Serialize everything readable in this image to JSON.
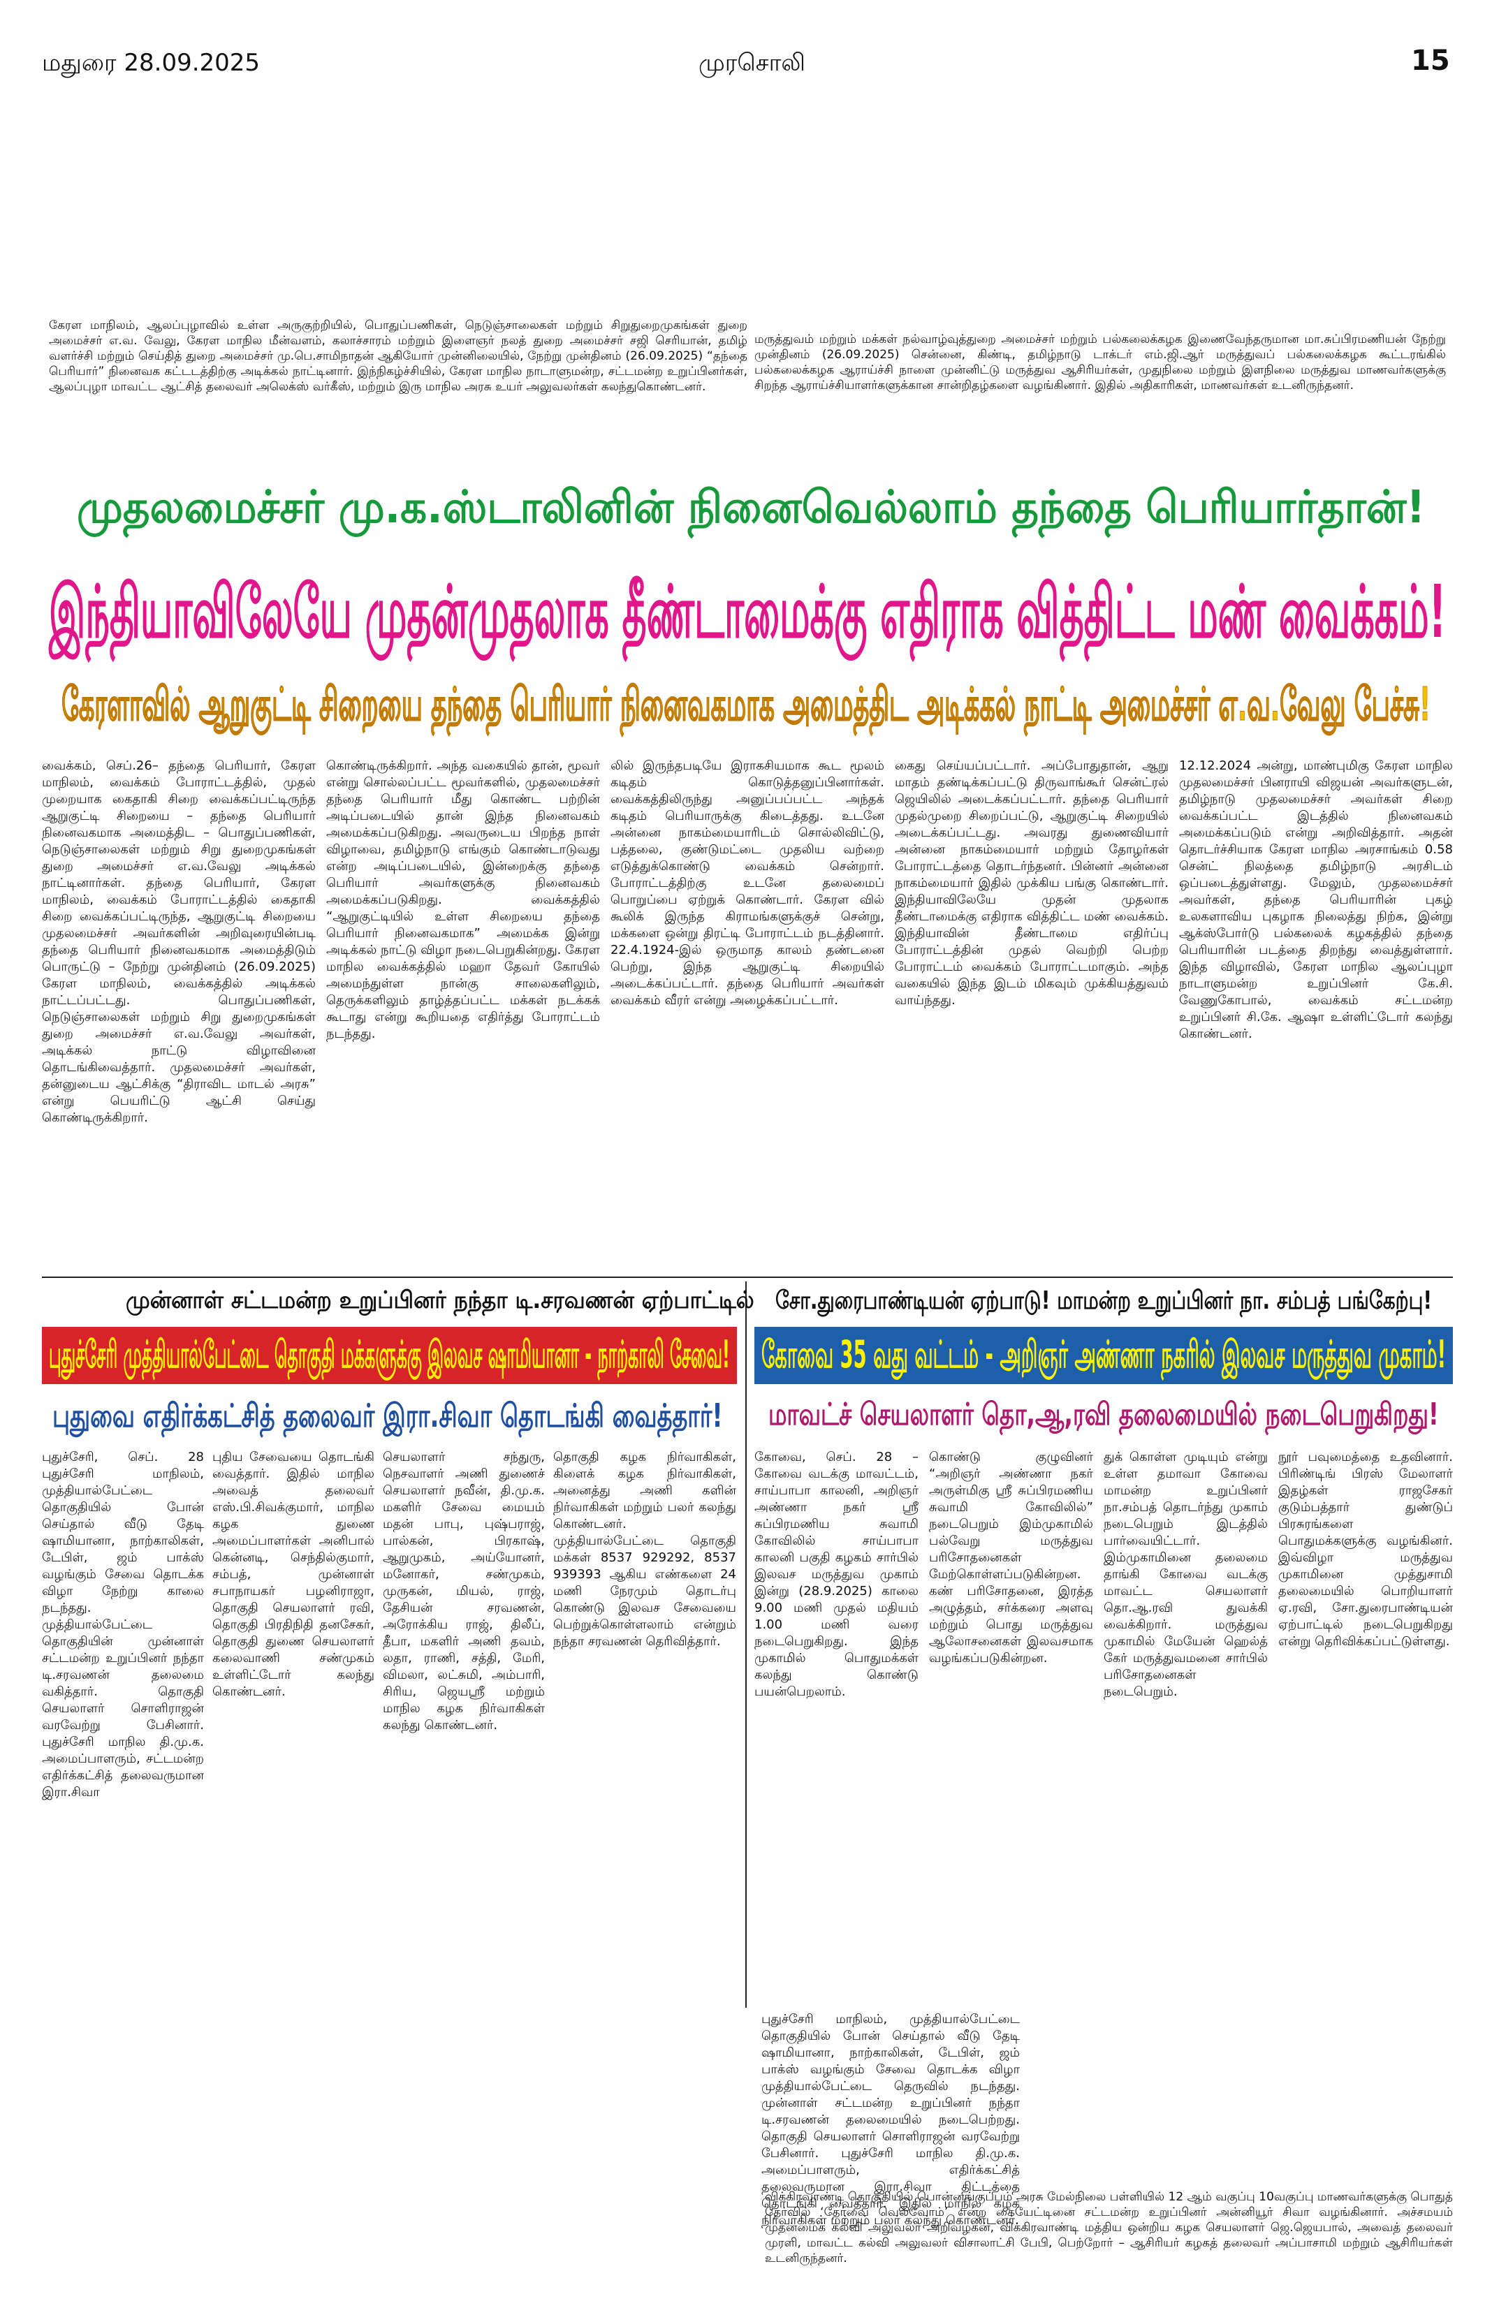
{
  "header": {
    "place_date": "மதுரை  28.09.2025",
    "paper": "முரசொலி",
    "page": "15"
  },
  "top_captions": [
    "கேரள மாநிலம், ஆலப்புழாவில் உள்ள அருகுற்றியில், பொதுப்பணிகள், நெடுஞ்சாலைகள் மற்றும் சிறுதுறைமுகங்கள் துறை அமைச்சர் எ.வ. வேலு, கேரள மாநில மீன்வளம், கலாச்சாரம் மற்றும் இளைஞர் நலத் துறை அமைச்சர் சஜி செரியான், தமிழ் வளர்ச்சி மற்றும் செய்தித் துறை அமைச்சர் மு.பெ.சாமிநாதன் ஆகியோர் முன்னிலையில், நேற்று முன்தினம் (26.09.2025) “தந்தை பெரியார்” நினைவக கட்டடத்திற்கு அடிக்கல் நாட்டினார். இந்நிகழ்ச்சியில், கேரள மாநில நாடாளுமன்ற, சட்டமன்ற உறுப்பினர்கள், ஆலப்புழா மாவட்ட ஆட்சித் தலைவர் அலெக்ஸ் வர்கீஸ், மற்றும் இரு மாநில அரசு உயர் அலுவலர்கள் கலந்துகொண்டனர்.",
    "மருத்துவம் மற்றும் மக்கள் நல்வாழ்வுத்துறை அமைச்சர் மற்றும் பல்கலைக்கழக இணைவேந்தருமான மா.சுப்பிரமணியன் நேற்று முன்தினம் (26.09.2025) சென்னை, கிண்டி, தமிழ்நாடு டாக்டர் எம்.ஜி.ஆர் மருத்துவப் பல்கலைக்கழக கூட்டரங்கில் பல்கலைக்கழக ஆராய்ச்சி நாளை முன்னிட்டு மருத்துவ ஆசிரியர்கள், முதுநிலை மற்றும் இளநிலை மருத்துவ மாணவர்களுக்கு சிறந்த ஆராய்ச்சியாளர்களுக்கான சான்றிதழ்களை வழங்கினார். இதில் அதிகாரிகள், மாணவர்கள் உடனிருந்தனர்."
  ],
  "story1": {
    "kicker": "முதலமைச்சர் மு.க.ஸ்டாலினின் நினைவெல்லாம் தந்தை பெரியார்தான்!",
    "headline": "இந்தியாவிலேயே முதன்முதலாக தீண்டாமைக்கு எதிராக வித்திட்ட மண் வைக்கம்!",
    "subhead": "கேரளாவில் ஆறுகுட்டி சிறையை தந்தை பெரியார் நினைவகமாக அமைத்திட அடிக்கல் நாட்டி அமைச்சர் எ.வ.வேலு பேச்சு!",
    "columns": [
      "வைக்கம், செப்.26– தந்தை பெரியார், கேரள மாநிலம், வைக்கம் போராட்டத்தில், முதல் முறையாக கைதாகி சிறை வைக்கப்பட்டிருந்த ஆறுகுட்டி சிறையை – தந்தை பெரியார் நினைவகமாக அமைத்திட – பொதுப்பணிகள், நெடுஞ்சாலைகள் மற்றும் சிறு துறைமுகங்கள் துறை அமைச்சர் எ.வ.வேலு அடிக்கல் நாட்டினார்கள். தந்தை பெரியார், கேரள மாநிலம், வைக்கம் போராட்டத்தில் கைதாகி சிறை வைக்கப்பட்டிருந்த, ஆறுகுட்டி சிறையை முதலமைச்சர் அவர்களின் அறிவுரையின்படி தந்தை பெரியார் நினைவகமாக அமைத்திடும் பொருட்டு – நேற்று முன்தினம் (26.09.2025) கேரள மாநிலம், வைக்கத்தில் அடிக்கல் நாட்டப்பட்டது. பொதுப்பணிகள், நெடுஞ்சாலைகள் மற்றும் சிறு துறைமுகங்கள் துறை அமைச்சர் எ.வ.வேலு அவர்கள், அடிக்கல் நாட்டு விழாவினை தொடங்கிவைத்தார். முதலமைச்சர் அவர்கள், தன்னுடைய ஆட்சிக்கு “திராவிட மாடல் அரசு” என்று பெயரிட்டு ஆட்சி செய்து கொண்டிருக்கிறார்.",
      "கொண்டிருக்கிறார். அந்த வகையில் தான், மூவர் என்று சொல்லப்பட்ட மூவர்களில், முதலமைச்சர் தந்தை பெரியார் மீது கொண்ட பற்றின் அடிப்படையில் தான் இந்த நினைவகம் அமைக்கப்படுகிறது. அவருடைய பிறந்த நாள் விழாவை, தமிழ்நாடு எங்கும் கொண்டாடுவது என்ற அடிப்படையில், இன்றைக்கு தந்தை பெரியார் அவர்களுக்கு நினைவகம் அமைக்கப்படுகிறது. வைக்கத்தில் “ஆறுகுட்டியில் உள்ள சிறையை தந்தை பெரியார் நினைவகமாக” அமைக்க இன்று அடிக்கல் நாட்டு விழா நடைபெறுகின்றது. கேரள மாநில வைக்கத்தில் மஹா தேவர் கோயில் அமைந்துள்ள நான்கு சாலைகளிலும், தெருக்களிலும் தாழ்த்தப்பட்ட மக்கள் நடக்கக் கூடாது என்று கூறியதை எதிர்த்து போராட்டம் நடந்தது.",
      "லில் இருந்தபடியே இராகசியமாக கூட மூலம் கடிதம் கொடுத்தனுப்பினார்கள். வைக்கத்திலிருந்து அனுப்பப்பட்ட அந்தக் கடிதம் பெரியாருக்கு கிடைத்தது. உடனே அன்னை நாகம்மையாரிடம் சொல்லிவிட்டு, பத்தலை, குண்டுமட்டை முதலிய வற்றை எடுத்துக்கொண்டு வைக்கம் சென்றார். போராட்டத்திற்கு உடனே தலைமைப் பொறுப்பை ஏற்றுக் கொண்டார். கேரள வில் கூலிக் இருந்த கிராமங்களுக்குச் சென்று, மக்களை ஒன்று திரட்டி போராட்டம் நடத்தினார். 22.4.1924-இல் ஒருமாத காலம் தண்டனை பெற்று, இந்த ஆறுகுட்டி சிறையில் அடைக்கப்பட்டார். தந்தை பெரியார் அவர்கள் வைக்கம் வீரர் என்று அழைக்கப்பட்டார்.",
      "கைது செய்யப்பட்டார். அப்போதுதான், ஆறு மாதம் தண்டிக்கப்பட்டு திருவாங்கூர் சென்ட்ரல் ஜெயிலில் அடைக்கப்பட்டார். தந்தை பெரியார் முதல்முறை சிறைப்பட்டு, ஆறுகுட்டி சிறையில் அடைக்கப்பட்டது. அவரது துணைவியார் அன்னை நாகம்மையார் மற்றும் தோழர்கள் போராட்டத்தை தொடர்ந்தனர். பின்னர் அன்னை நாகம்மையார் இதில் முக்கிய பங்கு கொண்டார். இந்தியாவிலேயே முதன் முதலாக தீண்டாமைக்கு எதிராக வித்திட்ட மண் வைக்கம். இந்தியாவின் தீண்டாமை எதிர்ப்பு போராட்டத்தின் முதல் வெற்றி பெற்ற போராட்டம் வைக்கம் போராட்டமாகும். அந்த வகையில் இந்த இடம் மிகவும் முக்கியத்துவம் வாய்ந்தது.",
      "12.12.2024 அன்று, மாண்புமிகு கேரள மாநில முதலமைச்சர் பினராயி விஜயன் அவர்களுடன், தமிழ்நாடு முதலமைச்சர் அவர்கள் சிறை வைக்கப்பட்ட இடத்தில் நினைவகம் அமைக்கப்படும் என்று அறிவித்தார். அதன் தொடர்ச்சியாக கேரள மாநில அரசாங்கம் 0.58 சென்ட் நிலத்தை தமிழ்நாடு அரசிடம் ஒப்படைத்துள்ளது. மேலும், முதலமைச்சர் அவர்கள், தந்தை பெரியாரின் புகழ் உலகளாவிய புகழாக நிலைத்து நிற்க, இன்று ஆக்ஸ்போர்டு பல்கலைக் கழகத்தில் தந்தை பெரியாரின் படத்தை திறந்து வைத்துள்ளார். இந்த விழாவில், கேரள மாநில ஆலப்புழா நாடாளுமன்ற உறுப்பினர் கே.சி. வேணுகோபால், வைக்கம் சட்டமன்ற உறுப்பினர் சி.கே. ஆஷா உள்ளிட்டோர் கலந்து கொண்டனர்."
    ]
  },
  "story2": {
    "kicker": "முன்னாள் சட்டமன்ற உறுப்பினர் நந்தா டி.சரவணன் ஏற்பாட்டில்",
    "headline": "புதுச்சேரி முத்தியால்பேட்டை தொகுதி மக்களுக்கு இலவச ஷாமியானா - நாற்காலி சேவை!",
    "subhead": "புதுவை எதிர்க்கட்சித் தலைவர் இரா.சிவா தொடங்கி வைத்தார்!",
    "columns": [
      "புதுச்சேரி, செப். 28 புதுச்சேரி மாநிலம், முத்தியால்பேட்டை தொகுதியில் போன் செய்தால் வீடு தேடி ஷாமியானா, நாற்காலிகள், டேபிள், ஜம் பாக்ஸ் வழங்கும் சேவை தொடக்க விழா நேற்று காலை நடந்தது. முத்தியால்பேட்டை தொகுதியின் முன்னாள் சட்டமன்ற உறுப்பினர் நந்தா டி.சரவணன் தலைமை வகித்தார். தொகுதி செயலாளர் சொளிராஜன் வரவேற்று பேசினார். புதுச்சேரி மாநில தி.மு.க. அமைப்பாளரும், சட்டமன்ற எதிர்க்கட்சித் தலைவருமான இரா.சிவா",
      "புதிய சேவையை தொடங்கி வைத்தார். இதில் மாநில அவைத் தலைவர் எஸ்.பி.சிவக்குமார், மாநில கழக துணை அமைப்பாளர்கள் அனிபால் கென்னடி, செந்தில்குமார், சம்பத், முன்னாள் சபாநாயகர் பழனிராஜா, தொகுதி செயலாளர் ரவி, தொகுதி பிரதிநிதி தனசேகர், தொகுதி துணை செயலாளர் கலைவாணி சண்முகம் உள்ளிட்டோர் கலந்து கொண்டனர்.",
      "செயலாளர் சந்துரு, நெசவாளர் அணி துணைச் செயலாளர் நவீன், தி.மு.க. மகளிர் சேவை மையம் மதன் பாபு, புஷ்பராஜ், பால்கன், பிரகாஷ், ஆறுமுகம், அய்யோனர், மனோகர், சண்முகம், முருகன், மியல், ராஜ், தேசியன் சரவணன், அரோக்கிய ராஜ், திலீப், தீபா, மகளிர் அணி தவம், லதா, ராணி, சத்தி, மேரி, விமலா, லட்சுமி, அம்பாரி, சிரிய, ஜெயஸ்ரீ மற்றும் மாநில கழக நிர்வாகிகள் கலந்து கொண்டனர்.",
      "தொகுதி கழக நிர்வாகிகள், கிளைக் கழக நிர்வாகிகள், அனைத்து அணி களின் நிர்வாகிகள் மற்றும் பலர் கலந்து கொண்டனர். முத்தியால்பேட்டை தொகுதி மக்கள் 8537 929292, 8537 939393 ஆகிய எண்களை 24 மணி நேரமும் தொடர்பு கொண்டு இலவச சேவையை பெற்றுக்கொள்ளலாம் என்றும் நந்தா சரவணன் தெரிவித்தார்.",
      "புதுச்சேரி மாநிலம், முத்தியால்பேட்டை தொகுதியில் போன் செய்தால் வீடு தேடி ஷாமியானா, நாற்காலிகள், டேபிள், ஜம் பாக்ஸ் வழங்கும் சேவை தொடக்க விழா முத்தியால்பேட்டை தெருவில் நடந்தது. முன்னாள் சட்டமன்ற உறுப்பினர் நந்தா டி.சரவணன் தலைமையில் நடைபெற்றது. தொகுதி செயலாளர் சொளிராஜன் வரவேற்று பேசினார். புதுச்சேரி மாநில தி.மு.க. அமைப்பாளரும், எதிர்க்கட்சித் தலைவருமான இரா.சிவா திட்டத்தை தொடங்கி வைத்தார். இதில் மாநில கழக நிர்வாகிகள் மற்றும் பலர் கலந்து கொண்டனர்."
    ]
  },
  "story3": {
    "kicker": "சோ.துரைபாண்டியன் ஏற்பாடு! மாமன்ற உறுப்பினர் நா. சம்பத் பங்கேற்பு!",
    "headline": "கோவை 35 வது வட்டம் - அறிஞர் அண்ணா நகரில் இலவச மருத்துவ முகாம்!",
    "subhead": "மாவட்ச் செயலாளர் தொ,ஆ,ரவி தலைமையில் நடைபெறுகிறது!",
    "columns": [
      "கோவை, செப். 28 – கோவை வடக்கு மாவட்டம், சாய்பாபா காலனி, அறிஞர் அண்ணா நகர் ஸ்ரீ சுப்பிரமணிய சுவாமி கோவிலில் சாய்பாபா காலனி பகுதி கழகம் சார்பில் இலவச மருத்துவ முகாம் இன்று (28.9.2025) காலை 9.00 மணி முதல் மதியம் 1.00 மணி வரை நடைபெறுகிறது. இந்த முகாமில் பொதுமக்கள் கலந்து கொண்டு பயன்பெறலாம்.",
      "கொண்டு குழுவினர் “அறிஞர் அண்ணா நகர் அருள்மிகு ஸ்ரீ சுப்பிரமணிய சுவாமி கோவிலில்” நடைபெறும் இம்முகாமில் பல்வேறு மருத்துவ பரிசோதனைகள் மேற்கொள்ளப்படுகின்றன. கண் பரிசோதனை, இரத்த அழுத்தம், சர்க்கரை அளவு மற்றும் பொது மருத்துவ ஆலோசனைகள் இலவசமாக வழங்கப்படுகின்றன.",
      "துக் கொள்ள முடியும் என்று உள்ள தமாவா கோவை மாமன்ற உறுப்பினர் நா.சம்பத் தொடர்ந்து முகாம் நடைபெறும் இடத்தில் பார்வையிட்டார். இம்முகாமினை தலைமை தாங்கி கோவை வடக்கு மாவட்ட செயலாளர் தொ.ஆ.ரவி துவக்கி வைக்கிறார். மருத்துவ முகாமில் மேயேன் ஹெல்த் கேர் மருத்துவமனை சார்பில் பரிசோதனைகள் நடைபெறும்.",
      "நூர் பவுமைத்தை உதவினார். பிரிண்டிங் பிரஸ் மேலாளர் இதழ்கள் ராஜசேகர் குடும்பத்தார் துண்டுப் பிரசுரங்களை பொதுமக்களுக்கு வழங்கினர். இவ்விழா மருத்துவ முகாமினை முத்துசாமி தலைமையில் பொறியாளர் ஏ.ரவி, சோ.துரைபாண்டியன் ஏற்பாட்டில் நடைபெறுகிறது என்று தெரிவிக்கப்பட்டுள்ளது."
    ]
  },
  "bottom_caption": "விக்கிரவாண்டி தொகுதியில் பொன்னங்குப்பம் அரசு மேல்நிலை பள்ளியில் 12 ஆம் வகுப்பு 10வகுப்பு மாணவர்களுக்கு பொதுத் தேர்வில் ‘தேர்வை வெல்வோம்’ என்ற கையேட்டினை சட்டமன்ற உறுப்பினர் அன்னியூர் சிவா வழங்கினார். அச்சமயம் முதன்மைக் கல்வி அலுவலர் அறிவழகன், விக்கிரவாண்டி மத்திய ஒன்றிய கழக செயலாளர் ஜெ.ஜெயபால், அவைத் தலைவர் முரளி, மாவட்ட கல்வி அலுவலர் விசாலாட்சி பேபி, பெற்றோர் – ஆசிரியர் கழகத் தலைவர் அப்பாசாமி மற்றும் ஆசிரியர்கள் உடனிருந்தனர்."
}
